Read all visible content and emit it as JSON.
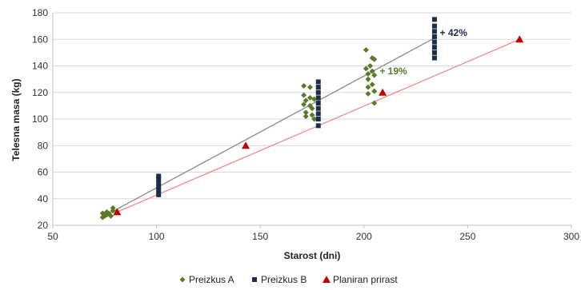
{
  "chart_data": {
    "type": "scatter",
    "title": "",
    "xlabel": "Starost (dni)",
    "ylabel": "Telesna masa (kg)",
    "xlim": [
      50,
      300
    ],
    "ylim": [
      20,
      180
    ],
    "xticks": [
      50,
      100,
      150,
      200,
      250,
      300
    ],
    "yticks": [
      20,
      40,
      60,
      80,
      100,
      120,
      140,
      160,
      180
    ],
    "grid": "horizontal",
    "legend_position": "bottom",
    "series": [
      {
        "name": "Preizkus A",
        "marker": "diamond",
        "color": "#5a7a2a",
        "points": [
          [
            74,
            26
          ],
          [
            74,
            29
          ],
          [
            75,
            27
          ],
          [
            76,
            30
          ],
          [
            76,
            28
          ],
          [
            77,
            29
          ],
          [
            78,
            27
          ],
          [
            79,
            33
          ],
          [
            79,
            31
          ],
          [
            171,
            125
          ],
          [
            171,
            118
          ],
          [
            171,
            111
          ],
          [
            172,
            114
          ],
          [
            172,
            105
          ],
          [
            172,
            102
          ],
          [
            174,
            124
          ],
          [
            174,
            116
          ],
          [
            174,
            110
          ],
          [
            175,
            108
          ],
          [
            175,
            103
          ],
          [
            176,
            115
          ],
          [
            176,
            100
          ],
          [
            201,
            152
          ],
          [
            201,
            138
          ],
          [
            202,
            134
          ],
          [
            202,
            130
          ],
          [
            202,
            124
          ],
          [
            202,
            119
          ],
          [
            203,
            140
          ],
          [
            204,
            146
          ],
          [
            204,
            136
          ],
          [
            204,
            126
          ],
          [
            205,
            145
          ],
          [
            205,
            133
          ],
          [
            205,
            121
          ],
          [
            205,
            112
          ]
        ]
      },
      {
        "name": "Preizkus B",
        "marker": "square",
        "color": "#1b2d4a",
        "points": [
          [
            101,
            43
          ],
          [
            101,
            46
          ],
          [
            101,
            49
          ],
          [
            101,
            52
          ],
          [
            101,
            55
          ],
          [
            101,
            57
          ],
          [
            178,
            95
          ],
          [
            178,
            100
          ],
          [
            178,
            104
          ],
          [
            178,
            108
          ],
          [
            178,
            112
          ],
          [
            178,
            116
          ],
          [
            178,
            120
          ],
          [
            178,
            124
          ],
          [
            178,
            128
          ],
          [
            234,
            146
          ],
          [
            234,
            150
          ],
          [
            234,
            154
          ],
          [
            234,
            158
          ],
          [
            234,
            162
          ],
          [
            234,
            166
          ],
          [
            234,
            170
          ],
          [
            234,
            175
          ]
        ]
      },
      {
        "name": "Planiran prirast",
        "marker": "triangle",
        "color": "#c00000",
        "points": [
          [
            81,
            30
          ],
          [
            143,
            80
          ],
          [
            209,
            120
          ],
          [
            275,
            160
          ]
        ]
      }
    ],
    "trendlines": [
      {
        "series": "Preizkus B",
        "color": "#8a8a8a",
        "from": [
          76,
          28
        ],
        "to": [
          234,
          161
        ]
      },
      {
        "series": "Planiran prirast",
        "color": "#f08a8a",
        "from": [
          81,
          30
        ],
        "to": [
          275,
          160
        ]
      }
    ],
    "annotations": [
      {
        "text": "+ 42%",
        "x": 235,
        "y": 165,
        "color": "#1b2d4a"
      },
      {
        "text": "+ 19%",
        "x": 206,
        "y": 136,
        "color": "#5a7a2a"
      }
    ]
  }
}
